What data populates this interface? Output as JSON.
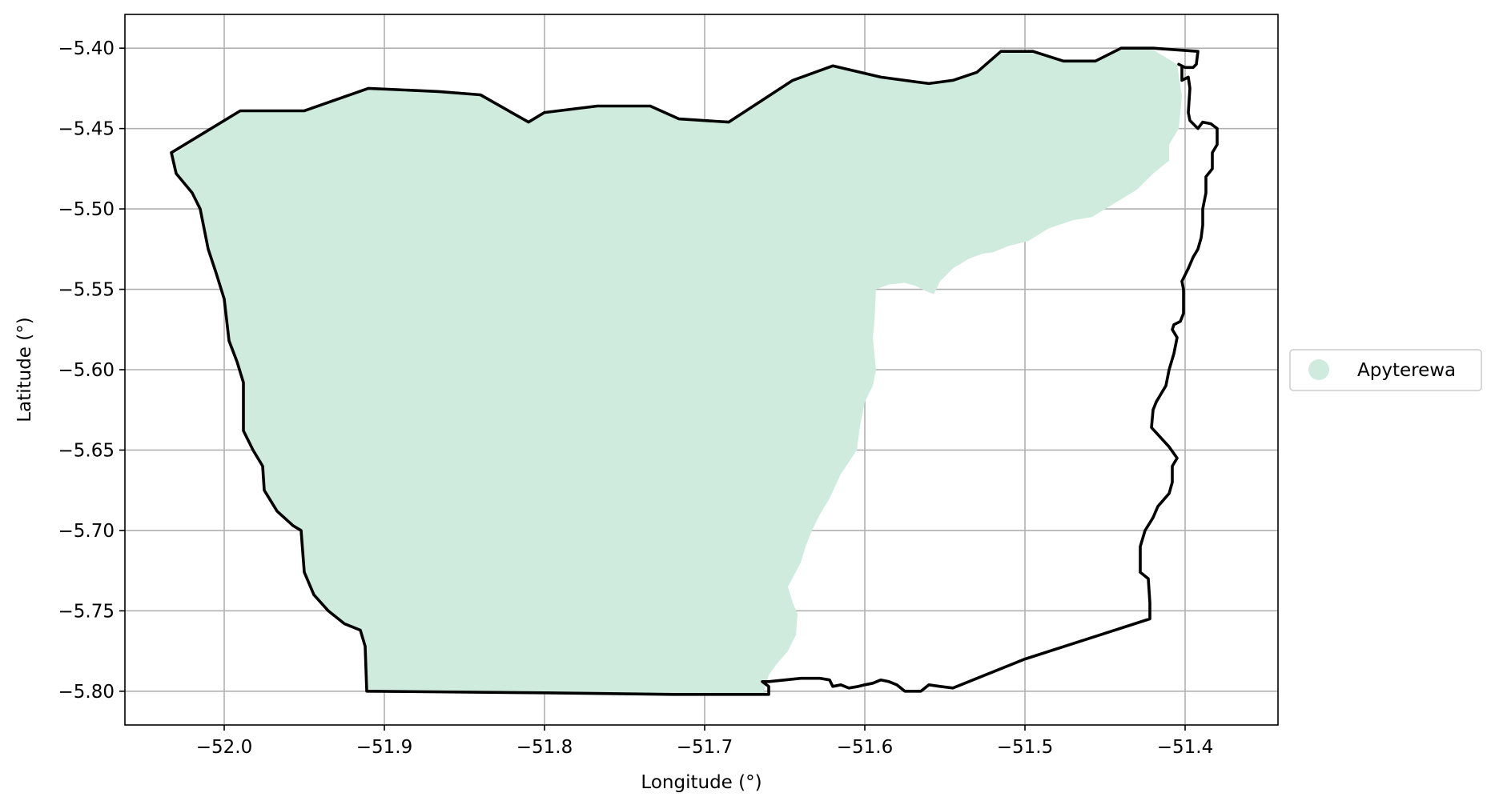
{
  "chart_data": {
    "type": "map",
    "xlabel": "Longitude (°)",
    "ylabel": "Latitude (°)",
    "xlim": [
      -52.062,
      -51.342
    ],
    "ylim": [
      -5.821,
      -5.379
    ],
    "x_ticks": [
      -52.0,
      -51.9,
      -51.8,
      -51.7,
      -51.6,
      -51.5,
      -51.4
    ],
    "x_tick_labels": [
      "−52.0",
      "−51.9",
      "−51.8",
      "−51.7",
      "−51.6",
      "−51.5",
      "−51.4"
    ],
    "y_ticks": [
      -5.4,
      -5.45,
      -5.5,
      -5.55,
      -5.6,
      -5.65,
      -5.7,
      -5.75,
      -5.8
    ],
    "y_tick_labels": [
      "−5.40",
      "−5.45",
      "−5.50",
      "−5.55",
      "−5.60",
      "−5.65",
      "−5.70",
      "−5.75",
      "−5.80"
    ],
    "grid": true,
    "legend": {
      "placement": "right-outside",
      "entries": [
        {
          "label": "Apyterewa",
          "color": "#cfebdd"
        }
      ]
    },
    "colors": {
      "fill": "#cfebdd",
      "boundary": "#000000",
      "grid": "#b0b0b0"
    },
    "fill_region": {
      "name": "Apyterewa",
      "coords": [
        [
          -52.03,
          -5.465
        ],
        [
          -51.99,
          -5.439
        ],
        [
          -51.95,
          -5.439
        ],
        [
          -51.91,
          -5.425
        ],
        [
          -51.866,
          -5.427
        ],
        [
          -51.84,
          -5.429
        ],
        [
          -51.81,
          -5.446
        ],
        [
          -51.8,
          -5.44
        ],
        [
          -51.767,
          -5.436
        ],
        [
          -51.734,
          -5.436
        ],
        [
          -51.716,
          -5.444
        ],
        [
          -51.685,
          -5.446
        ],
        [
          -51.645,
          -5.42
        ],
        [
          -51.62,
          -5.411
        ],
        [
          -51.59,
          -5.418
        ],
        [
          -51.56,
          -5.422
        ],
        [
          -51.545,
          -5.42
        ],
        [
          -51.53,
          -5.415
        ],
        [
          -51.515,
          -5.402
        ],
        [
          -51.495,
          -5.402
        ],
        [
          -51.476,
          -5.408
        ],
        [
          -51.456,
          -5.408
        ],
        [
          -51.44,
          -5.4
        ],
        [
          -51.42,
          -5.401
        ],
        [
          -51.405,
          -5.41
        ],
        [
          -51.402,
          -5.43
        ],
        [
          -51.404,
          -5.45
        ],
        [
          -51.41,
          -5.46
        ],
        [
          -51.41,
          -5.47
        ],
        [
          -51.42,
          -5.478
        ],
        [
          -51.43,
          -5.488
        ],
        [
          -51.445,
          -5.497
        ],
        [
          -51.458,
          -5.505
        ],
        [
          -51.47,
          -5.507
        ],
        [
          -51.485,
          -5.512
        ],
        [
          -51.498,
          -5.52
        ],
        [
          -51.51,
          -5.523
        ],
        [
          -51.52,
          -5.527
        ],
        [
          -51.527,
          -5.528
        ],
        [
          -51.535,
          -5.531
        ],
        [
          -51.545,
          -5.537
        ],
        [
          -51.553,
          -5.545
        ],
        [
          -51.557,
          -5.553
        ],
        [
          -51.562,
          -5.551
        ],
        [
          -51.568,
          -5.548
        ],
        [
          -51.575,
          -5.546
        ],
        [
          -51.585,
          -5.547
        ],
        [
          -51.593,
          -5.55
        ],
        [
          -51.594,
          -5.57
        ],
        [
          -51.595,
          -5.58
        ],
        [
          -51.593,
          -5.6
        ],
        [
          -51.595,
          -5.61
        ],
        [
          -51.6,
          -5.62
        ],
        [
          -51.603,
          -5.635
        ],
        [
          -51.605,
          -5.65
        ],
        [
          -51.615,
          -5.665
        ],
        [
          -51.622,
          -5.68
        ],
        [
          -51.628,
          -5.69
        ],
        [
          -51.633,
          -5.7
        ],
        [
          -51.637,
          -5.71
        ],
        [
          -51.64,
          -5.72
        ],
        [
          -51.648,
          -5.735
        ],
        [
          -51.645,
          -5.745
        ],
        [
          -51.642,
          -5.752
        ],
        [
          -51.643,
          -5.765
        ],
        [
          -51.648,
          -5.775
        ],
        [
          -51.655,
          -5.783
        ],
        [
          -51.66,
          -5.79
        ],
        [
          -51.663,
          -5.8
        ],
        [
          -51.66,
          -5.802
        ],
        [
          -51.72,
          -5.802
        ],
        [
          -51.8,
          -5.801
        ],
        [
          -51.911,
          -5.8
        ],
        [
          -51.912,
          -5.772
        ],
        [
          -51.915,
          -5.762
        ],
        [
          -51.925,
          -5.758
        ],
        [
          -51.935,
          -5.75
        ],
        [
          -51.944,
          -5.74
        ],
        [
          -51.95,
          -5.726
        ],
        [
          -51.952,
          -5.7
        ],
        [
          -51.957,
          -5.697
        ],
        [
          -51.967,
          -5.688
        ],
        [
          -51.975,
          -5.675
        ],
        [
          -51.976,
          -5.66
        ],
        [
          -51.982,
          -5.65
        ],
        [
          -51.988,
          -5.638
        ],
        [
          -51.988,
          -5.608
        ],
        [
          -51.992,
          -5.595
        ],
        [
          -51.997,
          -5.582
        ],
        [
          -52.0,
          -5.556
        ],
        [
          -52.005,
          -5.54
        ],
        [
          -52.01,
          -5.525
        ],
        [
          -52.015,
          -5.5
        ],
        [
          -52.02,
          -5.49
        ],
        [
          -52.03,
          -5.478
        ],
        [
          -52.033,
          -5.465
        ]
      ]
    },
    "boundary": {
      "coords": [
        [
          -52.033,
          -5.465
        ],
        [
          -51.99,
          -5.439
        ],
        [
          -51.95,
          -5.439
        ],
        [
          -51.91,
          -5.425
        ],
        [
          -51.866,
          -5.427
        ],
        [
          -51.84,
          -5.429
        ],
        [
          -51.81,
          -5.446
        ],
        [
          -51.8,
          -5.44
        ],
        [
          -51.767,
          -5.436
        ],
        [
          -51.734,
          -5.436
        ],
        [
          -51.716,
          -5.444
        ],
        [
          -51.685,
          -5.446
        ],
        [
          -51.645,
          -5.42
        ],
        [
          -51.62,
          -5.411
        ],
        [
          -51.59,
          -5.418
        ],
        [
          -51.56,
          -5.422
        ],
        [
          -51.545,
          -5.42
        ],
        [
          -51.53,
          -5.415
        ],
        [
          -51.515,
          -5.402
        ],
        [
          -51.495,
          -5.402
        ],
        [
          -51.476,
          -5.408
        ],
        [
          -51.456,
          -5.408
        ],
        [
          -51.44,
          -5.4
        ],
        [
          -51.42,
          -5.4
        ],
        [
          -51.392,
          -5.402
        ],
        [
          -51.393,
          -5.41
        ],
        [
          -51.395,
          -5.412
        ],
        [
          -51.4,
          -5.412
        ],
        [
          -51.404,
          -5.41
        ],
        [
          -51.402,
          -5.411
        ],
        [
          -51.402,
          -5.416
        ],
        [
          -51.402,
          -5.42
        ],
        [
          -51.398,
          -5.418
        ],
        [
          -51.397,
          -5.425
        ],
        [
          -51.398,
          -5.44
        ],
        [
          -51.397,
          -5.445
        ],
        [
          -51.392,
          -5.45
        ],
        [
          -51.389,
          -5.446
        ],
        [
          -51.384,
          -5.447
        ],
        [
          -51.38,
          -5.45
        ],
        [
          -51.38,
          -5.46
        ],
        [
          -51.383,
          -5.465
        ],
        [
          -51.383,
          -5.475
        ],
        [
          -51.387,
          -5.48
        ],
        [
          -51.387,
          -5.49
        ],
        [
          -51.389,
          -5.5
        ],
        [
          -51.389,
          -5.51
        ],
        [
          -51.39,
          -5.518
        ],
        [
          -51.392,
          -5.525
        ],
        [
          -51.395,
          -5.53
        ],
        [
          -51.398,
          -5.537
        ],
        [
          -51.402,
          -5.545
        ],
        [
          -51.401,
          -5.55
        ],
        [
          -51.401,
          -5.558
        ],
        [
          -51.401,
          -5.565
        ],
        [
          -51.403,
          -5.57
        ],
        [
          -51.407,
          -5.572
        ],
        [
          -51.408,
          -5.575
        ],
        [
          -51.405,
          -5.58
        ],
        [
          -51.407,
          -5.59
        ],
        [
          -51.41,
          -5.6
        ],
        [
          -51.412,
          -5.61
        ],
        [
          -51.415,
          -5.615
        ],
        [
          -51.418,
          -5.62
        ],
        [
          -51.42,
          -5.625
        ],
        [
          -51.421,
          -5.636
        ],
        [
          -51.41,
          -5.648
        ],
        [
          -51.405,
          -5.655
        ],
        [
          -51.408,
          -5.66
        ],
        [
          -51.408,
          -5.67
        ],
        [
          -51.41,
          -5.677
        ],
        [
          -51.417,
          -5.685
        ],
        [
          -51.42,
          -5.692
        ],
        [
          -51.425,
          -5.7
        ],
        [
          -51.428,
          -5.71
        ],
        [
          -51.428,
          -5.726
        ],
        [
          -51.423,
          -5.73
        ],
        [
          -51.422,
          -5.745
        ],
        [
          -51.422,
          -5.755
        ],
        [
          -51.5,
          -5.78
        ],
        [
          -51.545,
          -5.798
        ],
        [
          -51.553,
          -5.797
        ],
        [
          -51.56,
          -5.796
        ],
        [
          -51.565,
          -5.8
        ],
        [
          -51.575,
          -5.8
        ],
        [
          -51.58,
          -5.796
        ],
        [
          -51.585,
          -5.794
        ],
        [
          -51.59,
          -5.793
        ],
        [
          -51.595,
          -5.795
        ],
        [
          -51.6,
          -5.796
        ],
        [
          -51.604,
          -5.797
        ],
        [
          -51.61,
          -5.798
        ],
        [
          -51.615,
          -5.796
        ],
        [
          -51.62,
          -5.797
        ],
        [
          -51.622,
          -5.793
        ],
        [
          -51.628,
          -5.792
        ],
        [
          -51.64,
          -5.792
        ],
        [
          -51.66,
          -5.794
        ],
        [
          -51.664,
          -5.794
        ],
        [
          -51.66,
          -5.797
        ],
        [
          -51.66,
          -5.802
        ],
        [
          -51.72,
          -5.802
        ],
        [
          -51.8,
          -5.801
        ],
        [
          -51.911,
          -5.8
        ],
        [
          -51.912,
          -5.772
        ],
        [
          -51.915,
          -5.762
        ],
        [
          -51.925,
          -5.758
        ],
        [
          -51.935,
          -5.75
        ],
        [
          -51.944,
          -5.74
        ],
        [
          -51.95,
          -5.726
        ],
        [
          -51.952,
          -5.7
        ],
        [
          -51.957,
          -5.697
        ],
        [
          -51.967,
          -5.688
        ],
        [
          -51.975,
          -5.675
        ],
        [
          -51.976,
          -5.66
        ],
        [
          -51.982,
          -5.65
        ],
        [
          -51.988,
          -5.638
        ],
        [
          -51.988,
          -5.608
        ],
        [
          -51.992,
          -5.595
        ],
        [
          -51.997,
          -5.582
        ],
        [
          -52.0,
          -5.556
        ],
        [
          -52.005,
          -5.54
        ],
        [
          -52.01,
          -5.525
        ],
        [
          -52.015,
          -5.5
        ],
        [
          -52.02,
          -5.49
        ],
        [
          -52.03,
          -5.478
        ],
        [
          -52.033,
          -5.465
        ]
      ]
    }
  }
}
